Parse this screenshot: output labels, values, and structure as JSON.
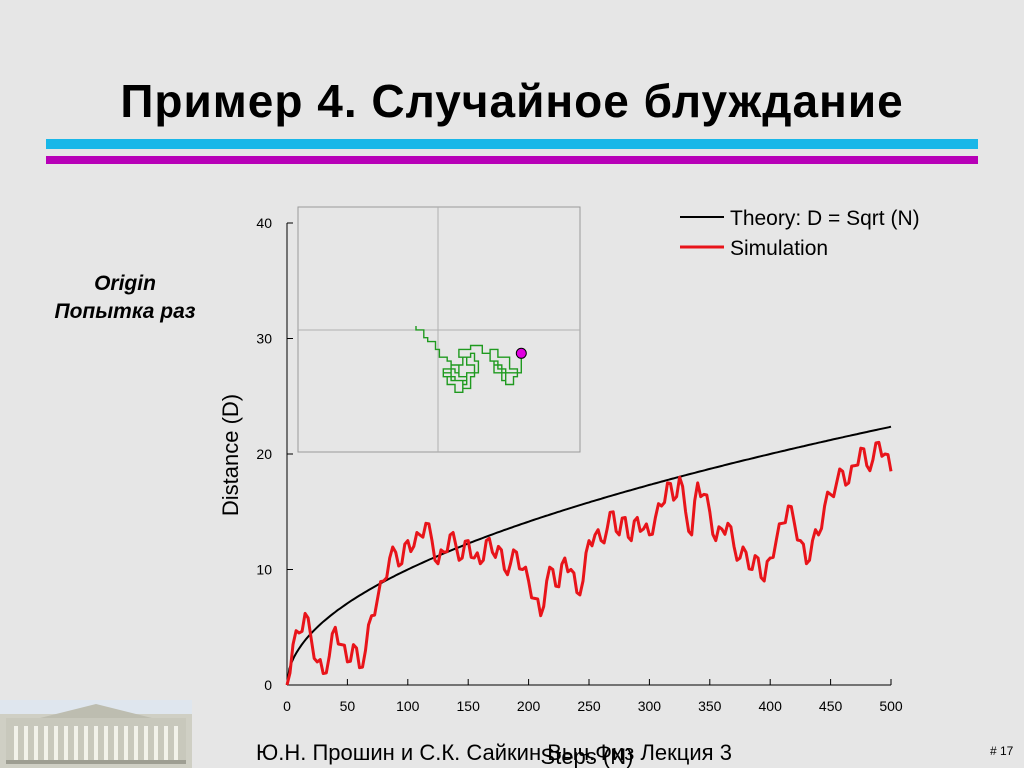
{
  "slide": {
    "title": "Пример 4. Случайное блуждание",
    "side_note_line1": "Origin",
    "side_note_line2": "Попытка раз",
    "footer": "Ю.Н. Прошин и С.К. Сайкин Выч.Физ Лекция 3",
    "page_number": "# 17"
  },
  "colors": {
    "rule_cyan": "#19b7e8",
    "rule_magenta": "#b700b7",
    "theory": "#000000",
    "simulation": "#e8141a",
    "walk_path": "#1f9a1f",
    "walk_marker": "#e000e0"
  },
  "chart_data": {
    "type": "line",
    "xlabel": "Steps (N)",
    "ylabel": "Distance (D)",
    "xlim": [
      0,
      500
    ],
    "ylim": [
      0,
      40
    ],
    "xticks": [
      0,
      50,
      100,
      150,
      200,
      250,
      300,
      350,
      400,
      450,
      500
    ],
    "yticks": [
      0,
      10,
      20,
      30,
      40
    ],
    "grid": false,
    "legend_position": "top-right",
    "series": [
      {
        "name": "Theory: D = Sqrt (N)",
        "kind": "function",
        "expression": "sqrt(N)"
      },
      {
        "name": "Simulation",
        "kind": "points",
        "x": [
          0,
          5,
          10,
          15,
          20,
          25,
          30,
          35,
          40,
          45,
          50,
          55,
          60,
          65,
          70,
          75,
          80,
          85,
          90,
          95,
          100,
          105,
          110,
          115,
          120,
          125,
          130,
          135,
          140,
          145,
          150,
          155,
          160,
          165,
          170,
          175,
          180,
          185,
          190,
          195,
          200,
          205,
          210,
          215,
          220,
          225,
          230,
          235,
          240,
          245,
          250,
          255,
          260,
          265,
          270,
          275,
          280,
          285,
          290,
          295,
          300,
          305,
          310,
          315,
          320,
          325,
          330,
          335,
          340,
          345,
          350,
          355,
          360,
          365,
          370,
          375,
          380,
          385,
          390,
          395,
          400,
          405,
          410,
          415,
          420,
          425,
          430,
          435,
          440,
          445,
          450,
          455,
          460,
          465,
          470,
          475,
          480,
          485,
          490,
          495,
          500
        ],
        "y": [
          0,
          3.5,
          4.5,
          6.2,
          4,
          2,
          1,
          2.5,
          5,
          3.5,
          2,
          3.5,
          1.5,
          3,
          6,
          7.5,
          9,
          11,
          11.5,
          10.5,
          12.5,
          12,
          13,
          14,
          12.5,
          10.5,
          11.5,
          13,
          12,
          11,
          12.5,
          11,
          10.5,
          12.5,
          11.5,
          12,
          10,
          10.5,
          11.5,
          10,
          9,
          7.5,
          6,
          9,
          10,
          8.5,
          11,
          10,
          8,
          9,
          12.5,
          13,
          12.5,
          13.5,
          15,
          13,
          14.5,
          12.5,
          14.5,
          13.5,
          13,
          14.5,
          15.5,
          17.5,
          16,
          18,
          15,
          13,
          17.5,
          16.5,
          15,
          12.5,
          13.5,
          14,
          12,
          11,
          11.5,
          10,
          11,
          9,
          11,
          12.5,
          14,
          15.5,
          14,
          12.5,
          10.5,
          12.5,
          13,
          15.5,
          16.5,
          17.5,
          18.5,
          17.5,
          19,
          20.5,
          19,
          19.5,
          21,
          20,
          18.5
        ]
      }
    ],
    "inset": {
      "type": "scatter",
      "x": [
        0,
        0,
        2,
        2,
        3,
        3,
        5,
        5,
        6,
        6,
        8,
        8,
        9,
        9,
        10,
        10,
        11,
        11,
        12,
        12,
        14,
        14,
        15,
        15,
        16,
        16,
        13,
        13,
        10,
        10,
        7,
        7,
        9,
        9,
        11,
        11,
        13,
        13,
        12,
        12,
        10,
        10,
        8,
        8,
        7,
        7,
        9,
        9,
        12,
        12,
        14,
        14,
        15,
        15,
        13,
        13,
        11,
        11,
        14,
        14,
        17,
        17,
        19,
        19,
        20,
        20,
        22,
        22,
        23,
        23,
        21,
        21,
        19,
        19,
        21,
        21,
        24,
        24,
        26,
        26,
        25,
        25,
        23,
        23,
        20,
        20,
        22,
        22,
        27,
        27
      ],
      "y": [
        0,
        -1,
        -1,
        -3,
        -3,
        -4,
        -4,
        -6,
        -6,
        -8,
        -8,
        -9,
        -9,
        -11,
        -11,
        -12,
        -12,
        -10,
        -10,
        -8,
        -8,
        -7,
        -7,
        -9,
        -9,
        -12,
        -12,
        -14,
        -14,
        -13,
        -13,
        -12,
        -12,
        -10,
        -10,
        -13,
        -13,
        -15,
        -15,
        -17,
        -17,
        -15,
        -15,
        -13,
        -13,
        -11,
        -11,
        -14,
        -14,
        -16,
        -16,
        -13,
        -13,
        -10,
        -10,
        -8,
        -8,
        -6,
        -6,
        -5,
        -5,
        -7,
        -7,
        -9,
        -9,
        -12,
        -12,
        -14,
        -14,
        -11,
        -11,
        -9,
        -9,
        -6,
        -6,
        -8,
        -8,
        -11,
        -11,
        -13,
        -13,
        -15,
        -15,
        -12,
        -12,
        -10,
        -10,
        -12,
        -12,
        -7
      ],
      "end_marker": "circle"
    }
  }
}
